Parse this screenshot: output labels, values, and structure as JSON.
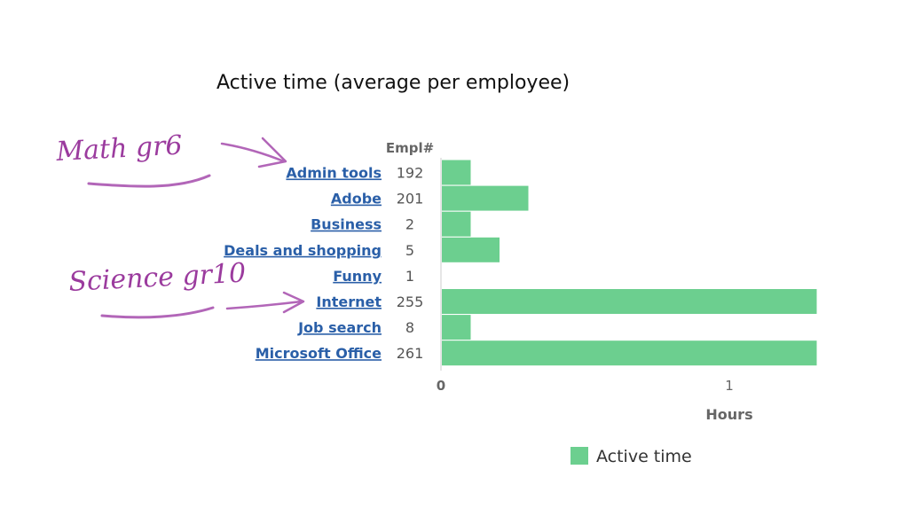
{
  "chart_data": {
    "type": "bar",
    "orientation": "horizontal",
    "title": "Active time (average per employee)",
    "count_header": "Empl#",
    "categories": [
      "Admin tools",
      "Adobe",
      "Business",
      "Deals and shopping",
      "Funny",
      "Internet",
      "Job search",
      "Microsoft Office"
    ],
    "employee_counts": [
      "192",
      "201",
      "2",
      "5",
      "1",
      "255",
      "8",
      "261"
    ],
    "series": [
      {
        "name": "Active time",
        "color": "#6ccf8f",
        "values": [
          0.1,
          0.3,
          0.1,
          0.2,
          0,
          1.3,
          0.1,
          1.3
        ]
      }
    ],
    "xlabel": "Hours",
    "ticks": [
      "0",
      "1"
    ],
    "xlim": [
      0,
      1.3
    ],
    "grid": false,
    "legend_position": "bottom"
  },
  "annotations": [
    {
      "text": "Math gr6",
      "color": "#9b3b9e",
      "points_to": "Admin tools"
    },
    {
      "text": "Science gr10",
      "color": "#9b3b9e",
      "points_to": "Internet"
    }
  ]
}
